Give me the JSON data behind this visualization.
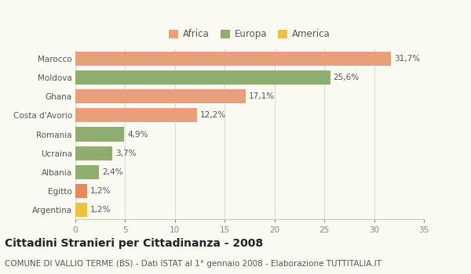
{
  "categories": [
    "Argentina",
    "Egitto",
    "Albania",
    "Ucraina",
    "Romania",
    "Costa d'Avorio",
    "Ghana",
    "Moldova",
    "Marocco"
  ],
  "values": [
    1.2,
    1.2,
    2.4,
    3.7,
    4.9,
    12.2,
    17.1,
    25.6,
    31.7
  ],
  "labels": [
    "1,2%",
    "1,2%",
    "2,4%",
    "3,7%",
    "4,9%",
    "12,2%",
    "17,1%",
    "25,6%",
    "31,7%"
  ],
  "colors": [
    "#f0c040",
    "#e8875a",
    "#8fad6e",
    "#8fad6e",
    "#8fad6e",
    "#e8a07a",
    "#e8a07a",
    "#8fad6e",
    "#e8a07a"
  ],
  "continent": [
    "America",
    "Africa",
    "Europa",
    "Europa",
    "Europa",
    "Africa",
    "Africa",
    "Europa",
    "Africa"
  ],
  "legend": [
    {
      "label": "Africa",
      "color": "#e8a07a"
    },
    {
      "label": "Europa",
      "color": "#8fad6e"
    },
    {
      "label": "America",
      "color": "#f0c040"
    }
  ],
  "xlim": [
    0,
    35
  ],
  "xticks": [
    0,
    5,
    10,
    15,
    20,
    25,
    30,
    35
  ],
  "title": "Cittadini Stranieri per Cittadinanza - 2008",
  "subtitle": "COMUNE DI VALLIO TERME (BS) - Dati ISTAT al 1° gennaio 2008 - Elaborazione TUTTITALIA.IT",
  "bg_color": "#fafaf2",
  "bar_height": 0.75,
  "title_fontsize": 10,
  "subtitle_fontsize": 7.5,
  "label_fontsize": 7.5,
  "tick_fontsize": 7.5,
  "legend_fontsize": 8.5
}
